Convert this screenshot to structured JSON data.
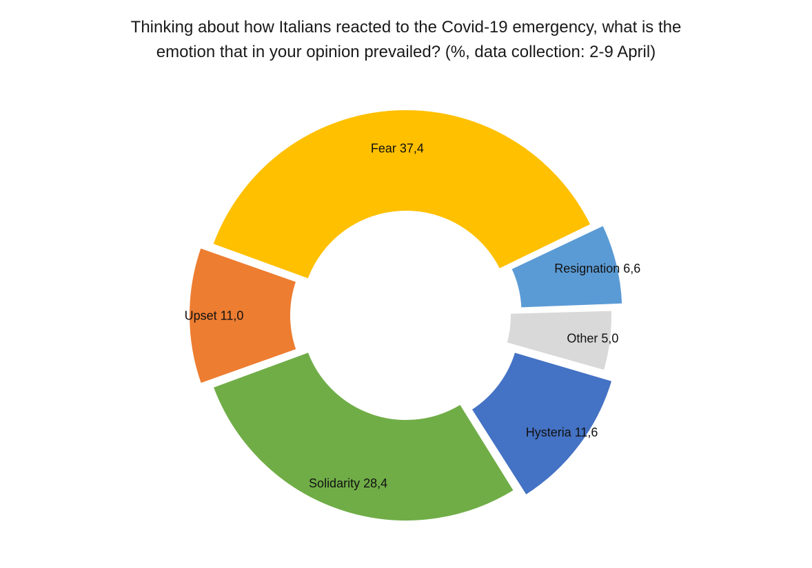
{
  "chart_data": {
    "type": "pie",
    "variant": "donut",
    "title_lines": [
      "Thinking about how Italians reacted to the Covid-19 emergency, what is the",
      "emotion that in your opinion prevailed? (%, data collection: 2-9 April)"
    ],
    "slices": [
      {
        "name": "Fear",
        "value": 37.4,
        "label": "Fear 37,4",
        "color": "#FFC000",
        "exploded": false
      },
      {
        "name": "Resignation",
        "value": 6.6,
        "label": "Resignation 6,6",
        "color": "#5B9BD5",
        "exploded": true
      },
      {
        "name": "Other",
        "value": 5.0,
        "label": "Other 5,0",
        "color": "#D9D9D9",
        "exploded": false
      },
      {
        "name": "Hysteria",
        "value": 11.6,
        "label": "Hysteria 11,6",
        "color": "#4472C4",
        "exploded": true
      },
      {
        "name": "Solidarity",
        "value": 28.4,
        "label": "Solidarity 28,4",
        "color": "#70AD47",
        "exploded": false
      },
      {
        "name": "Upset",
        "value": 11.0,
        "label": "Upset 11,0",
        "color": "#ED7D31",
        "exploded": true
      }
    ],
    "legend": "none",
    "data_labels": "inside"
  }
}
